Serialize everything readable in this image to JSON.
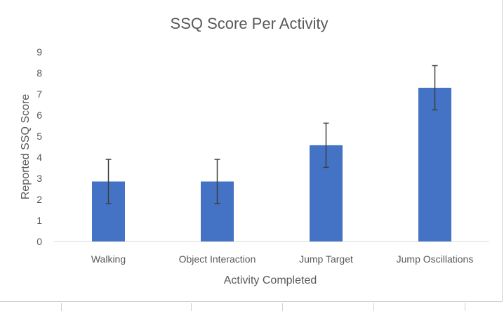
{
  "chart_data": {
    "type": "bar",
    "title": "SSQ Score Per Activity",
    "xlabel": "Activity Completed",
    "ylabel": "Reported SSQ Score",
    "categories": [
      "Walking",
      "Object Interaction",
      "Jump Target",
      "Jump Oscillations"
    ],
    "values": [
      2.85,
      2.85,
      4.57,
      7.3
    ],
    "error_bars": [
      1.05,
      1.05,
      1.05,
      1.05
    ],
    "ylim": [
      0,
      9
    ],
    "yticks": [
      "0",
      "1",
      "2",
      "3",
      "4",
      "5",
      "6",
      "7",
      "8",
      "9"
    ],
    "bar_color": "#4472c4",
    "error_bar_color": "#3f3f3f",
    "grid": false,
    "legend": false
  }
}
